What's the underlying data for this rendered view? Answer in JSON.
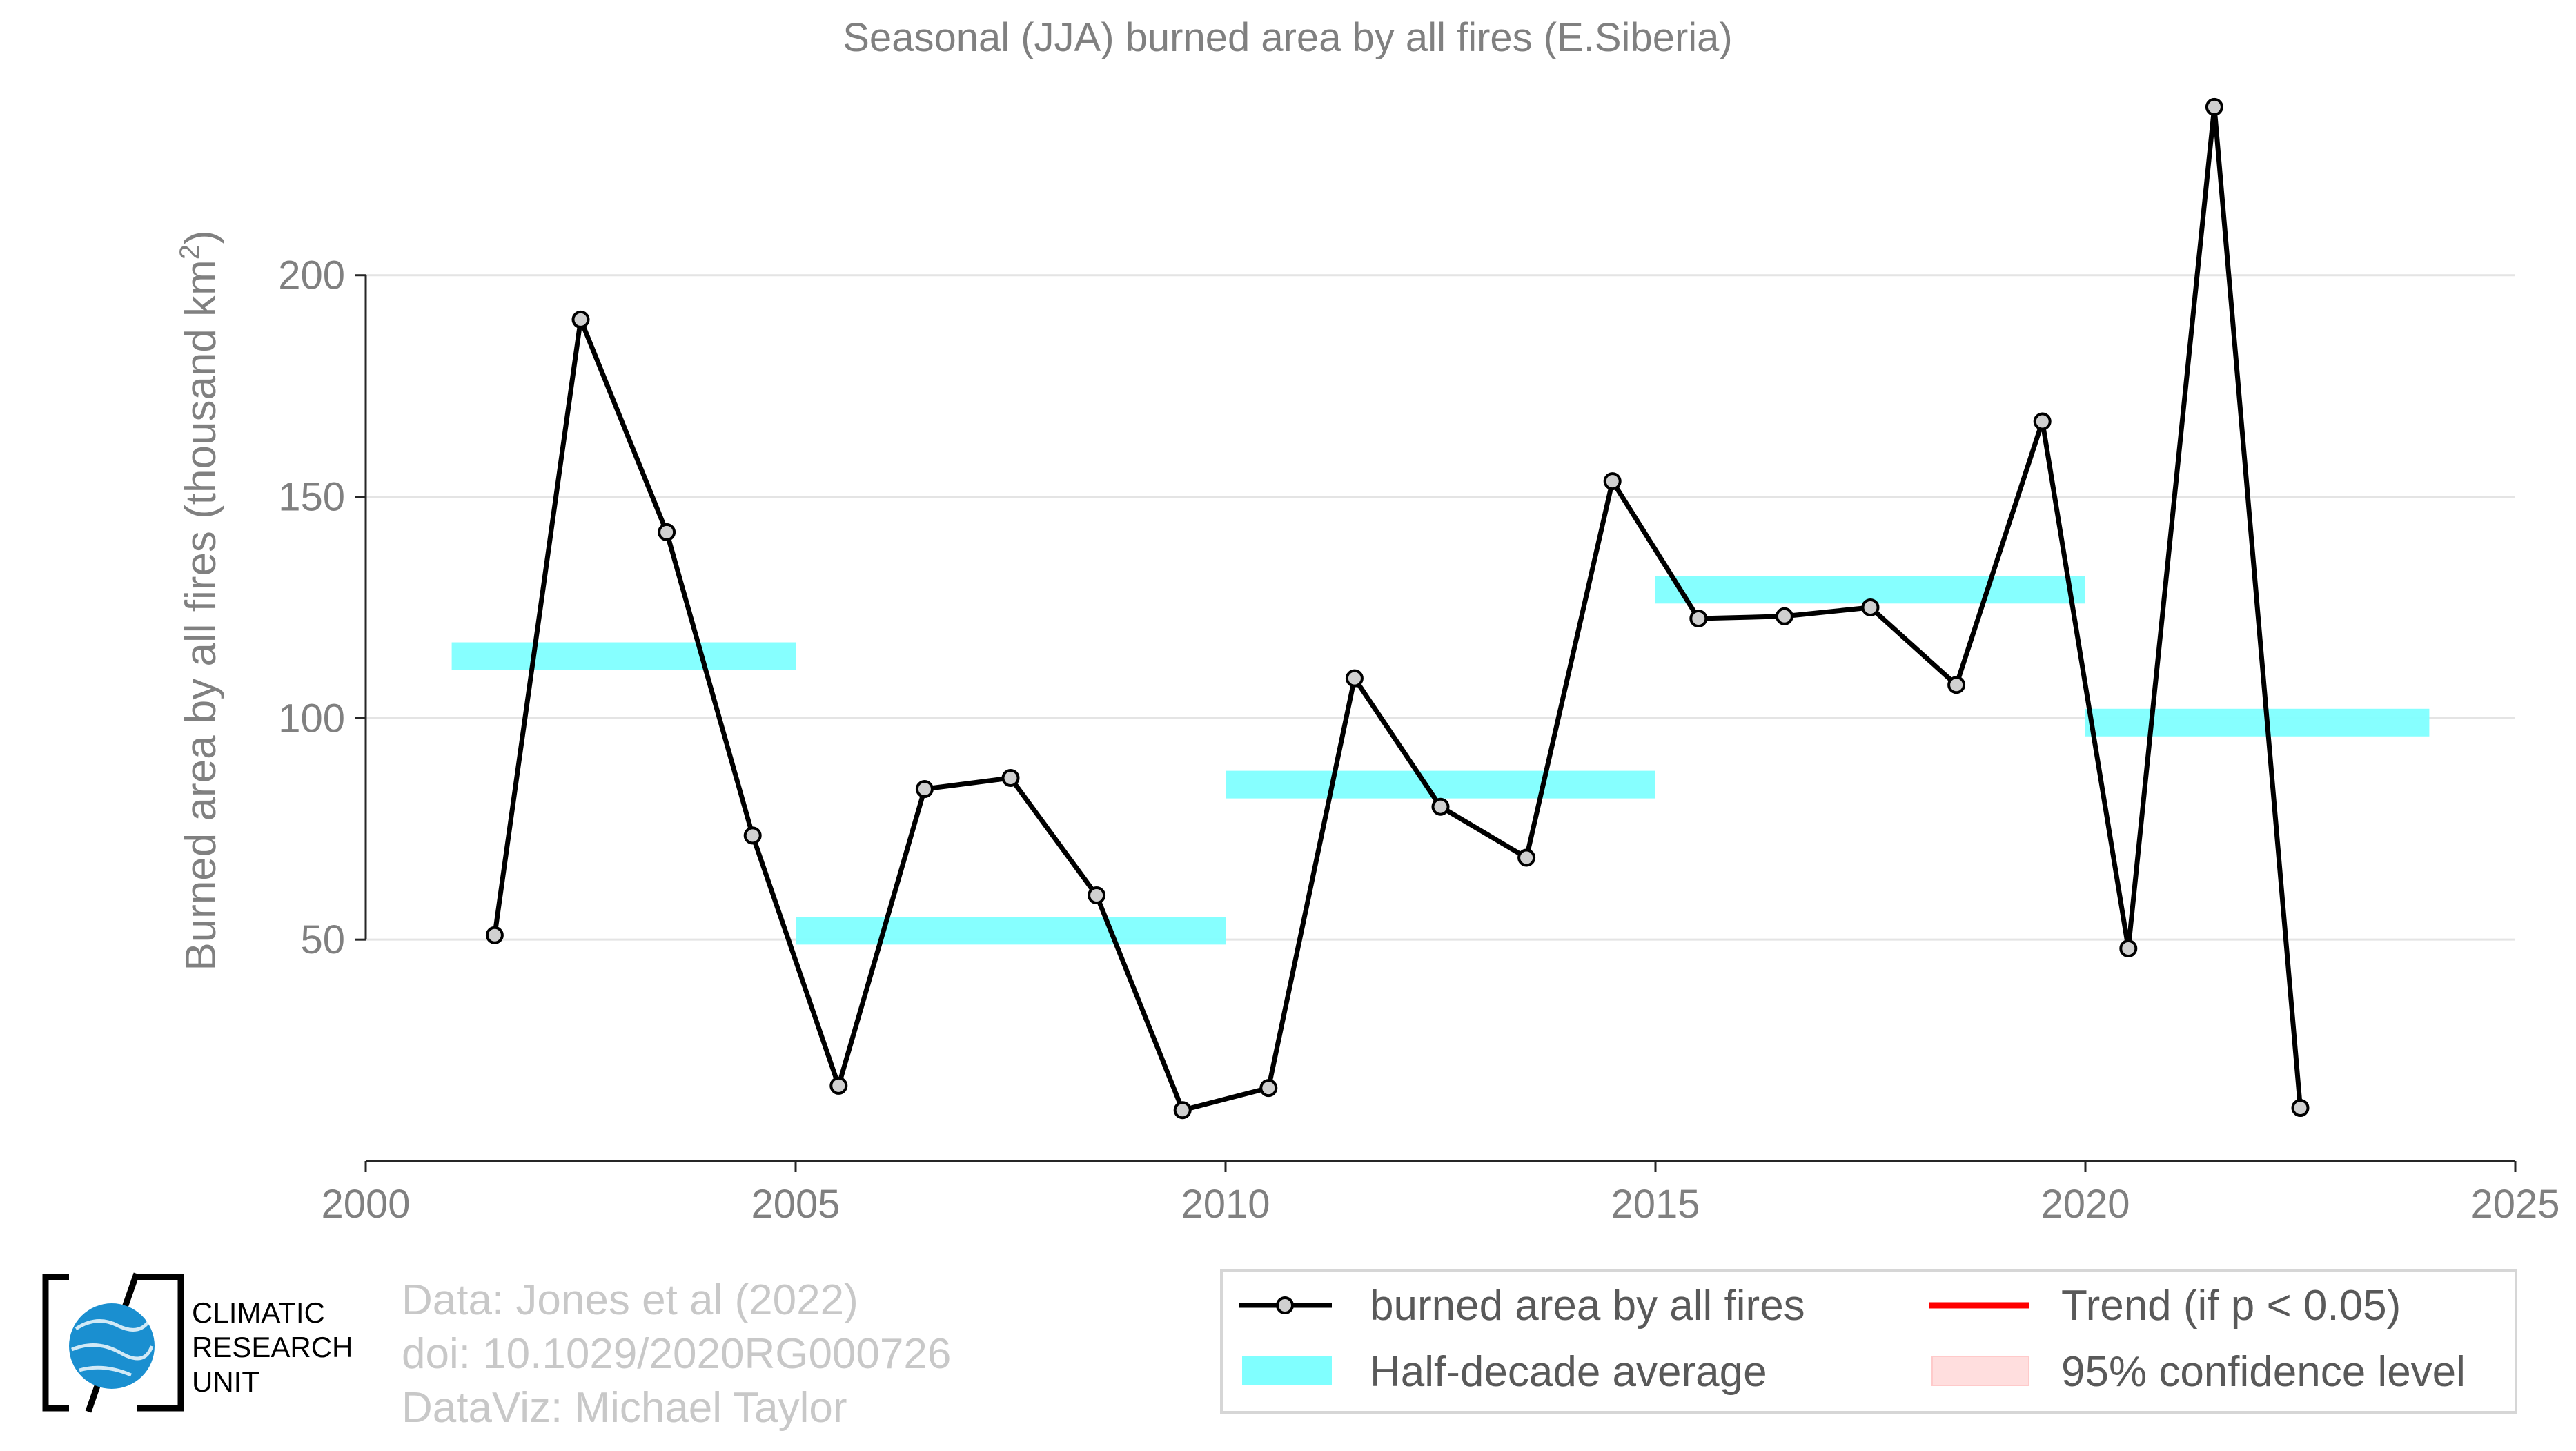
{
  "chart_data": {
    "type": "line",
    "title": "Seasonal (JJA) burned area by all fires (E.Siberia)",
    "ylabel": "Burned area by all fires (thousand km",
    "ylabel_sup": "2",
    "ylabel_close": ")",
    "xlabel": "",
    "xlim": [
      2000,
      2025
    ],
    "ylim": [
      0,
      245
    ],
    "x_ticks": [
      2000,
      2005,
      2010,
      2015,
      2020,
      2025
    ],
    "y_ticks": [
      50,
      100,
      150,
      200
    ],
    "grid": true,
    "legend_position": "bottom-right",
    "series": [
      {
        "name": "burned area by all fires",
        "color": "#000000",
        "marker_fill": "#d0d0d0",
        "x": [
          2001.5,
          2002.5,
          2003.5,
          2004.5,
          2005.5,
          2006.5,
          2007.5,
          2008.5,
          2009.5,
          2010.5,
          2011.5,
          2012.5,
          2013.5,
          2014.5,
          2015.5,
          2016.5,
          2017.5,
          2018.5,
          2019.5,
          2020.5,
          2021.5,
          2022.5
        ],
        "values": [
          51,
          190,
          142,
          73.5,
          17,
          84,
          86.5,
          60,
          11.5,
          16.5,
          109,
          80,
          68.5,
          153.5,
          122.5,
          123,
          125,
          107.5,
          167,
          48,
          238,
          12
        ]
      }
    ],
    "half_decade_average": {
      "name": "Half-decade average",
      "color": "#80ffff",
      "segments": [
        {
          "x_start": 2001,
          "x_end": 2005,
          "value": 114
        },
        {
          "x_start": 2005,
          "x_end": 2010,
          "value": 52
        },
        {
          "x_start": 2010,
          "x_end": 2015,
          "value": 85
        },
        {
          "x_start": 2015,
          "x_end": 2020,
          "value": 129
        },
        {
          "x_start": 2020,
          "x_end": 2024,
          "value": 99
        }
      ]
    },
    "legend": [
      {
        "label": "burned area by all fires",
        "kind": "line-marker",
        "color": "#000000"
      },
      {
        "label": "Trend (if p < 0.05)",
        "kind": "line",
        "color": "#ff0000"
      },
      {
        "label": "Half-decade average",
        "kind": "patch",
        "color": "#80ffff"
      },
      {
        "label": "95% confidence level",
        "kind": "patch",
        "color": "#ffdede"
      }
    ]
  },
  "credits": {
    "line1": "Data: Jones et al (2022)",
    "line2": "doi: 10.1029/2020RG000726",
    "line3": "DataViz: Michael Taylor"
  },
  "logo": {
    "line1": "CLIMATIC",
    "line2": "RESEARCH",
    "line3": "UNIT",
    "globe_color": "#1a8fd0"
  }
}
